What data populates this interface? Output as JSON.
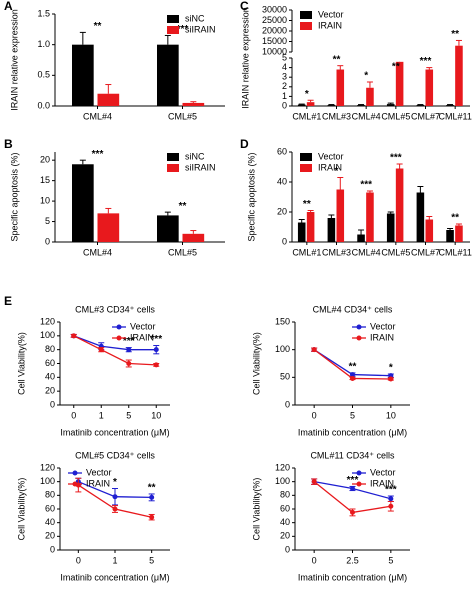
{
  "chart_data": [
    {
      "panel": "A",
      "type": "bar",
      "ylabel": "IRAIN relative expression",
      "categories": [
        "CML#4",
        "CML#5"
      ],
      "series": [
        {
          "name": "siNC",
          "color": "#000000",
          "values": [
            1.0,
            1.0
          ],
          "errors": [
            0.2,
            0.15
          ]
        },
        {
          "name": "siIRAIN",
          "color": "#e8191d",
          "values": [
            0.2,
            0.05
          ],
          "errors": [
            0.15,
            0.02
          ]
        }
      ],
      "significance": [
        "**",
        "***"
      ],
      "ylim": [
        0,
        1.5
      ],
      "yticks": [
        {
          "value": 0,
          "label": "0.0"
        },
        0.5,
        {
          "value": 1,
          "label": "1.0"
        },
        1.5
      ],
      "legend": "upper right"
    },
    {
      "panel": "C",
      "type": "bar",
      "ylabel": "IRAIN relative expression",
      "categories": [
        "CML#1",
        "CML#3",
        "CML#4",
        "CML#5",
        "CML#7",
        "CML#11"
      ],
      "series": [
        {
          "name": "Vector",
          "color": "#000000",
          "values": [
            0.15,
            0.1,
            0.1,
            0.2,
            0.1,
            0.1
          ],
          "errors": [
            0.05,
            0.05,
            0.05,
            0.1,
            0.05,
            0.05
          ]
        },
        {
          "name": "IRAIN",
          "color": "#e8191d",
          "values": [
            0.4,
            3.8,
            1.9,
            4.6,
            3.8,
            13000
          ],
          "errors": [
            0.2,
            0.4,
            0.6,
            0.5,
            0.2,
            2500
          ]
        }
      ],
      "significance": [
        "*",
        "**",
        "*",
        "**",
        "***",
        "**"
      ],
      "ylim": [
        0,
        30000
      ],
      "ybreak": [
        5,
        10000
      ],
      "yticks": [
        0,
        1,
        2,
        3,
        4,
        5,
        10000,
        15000,
        20000,
        25000,
        30000
      ],
      "legend": "upper left"
    },
    {
      "panel": "B",
      "type": "bar",
      "ylabel": "Specific apoptosis (%)",
      "categories": [
        "CML#4",
        "CML#5"
      ],
      "series": [
        {
          "name": "siNC",
          "color": "#000000",
          "values": [
            19,
            6.5
          ],
          "errors": [
            1,
            0.8
          ]
        },
        {
          "name": "siIRAIN",
          "color": "#e8191d",
          "values": [
            7,
            2
          ],
          "errors": [
            1.2,
            0.8
          ]
        }
      ],
      "significance": [
        "***",
        "**"
      ],
      "ylim": [
        0,
        22
      ],
      "yticks": [
        0,
        5,
        10,
        15,
        20
      ],
      "legend": "upper right"
    },
    {
      "panel": "D",
      "type": "bar",
      "ylabel": "Specific apoptosis (%)",
      "categories": [
        "CML#1",
        "CML#3",
        "CML#4",
        "CML#5",
        "CML#7",
        "CML#11"
      ],
      "series": [
        {
          "name": "Vector",
          "color": "#000000",
          "values": [
            13,
            16,
            5,
            19,
            33,
            8
          ],
          "errors": [
            2,
            2,
            3,
            1,
            4,
            1
          ]
        },
        {
          "name": "IRAIN",
          "color": "#e8191d",
          "values": [
            20,
            35,
            33,
            49,
            15,
            11
          ],
          "errors": [
            1,
            8,
            1,
            3,
            2,
            1
          ]
        }
      ],
      "significance": [
        "**",
        "*",
        "***",
        "***",
        null,
        "**"
      ],
      "ylim": [
        0,
        60
      ],
      "yticks": [
        0,
        20,
        40,
        60
      ],
      "legend": "upper left"
    },
    {
      "panel": "E",
      "type": "line",
      "title": "CML#3 CD34⁺ cells",
      "ylabel": "Cell Viability(%)",
      "xlabel": "Imatinib concentration (μM)",
      "categories": [
        "0",
        "1",
        "5",
        "10"
      ],
      "series": [
        {
          "name": "Vector",
          "color": "#1f1fd1",
          "values": [
            100,
            85,
            80,
            80
          ],
          "errors": [
            2,
            5,
            3,
            6
          ]
        },
        {
          "name": "IRAIN",
          "color": "#e8191d",
          "values": [
            100,
            80,
            60,
            58
          ],
          "errors": [
            2,
            3,
            5,
            2
          ]
        }
      ],
      "significance": [
        null,
        null,
        "***",
        "***"
      ],
      "ylim": [
        0,
        120
      ],
      "yticks": [
        0,
        20,
        40,
        60,
        80,
        100,
        120
      ],
      "legend": "upper right"
    },
    {
      "type": "line",
      "title": "CML#4 CD34⁺ cells",
      "ylabel": "Cell Viability(%)",
      "xlabel": "Imatinib concentration (μM)",
      "categories": [
        "0",
        "5",
        "10"
      ],
      "series": [
        {
          "name": "Vector",
          "color": "#1f1fd1",
          "values": [
            100,
            55,
            53
          ],
          "errors": [
            3,
            3,
            3
          ]
        },
        {
          "name": "IRAIN",
          "color": "#e8191d",
          "values": [
            100,
            48,
            47
          ],
          "errors": [
            3,
            2,
            2
          ]
        }
      ],
      "significance": [
        null,
        "**",
        "*"
      ],
      "ylim": [
        0,
        150
      ],
      "yticks": [
        0,
        50,
        100,
        150
      ],
      "legend": "upper right"
    },
    {
      "type": "line",
      "title": "CML#5 CD34⁺ cells",
      "ylabel": "Cell Viability(%)",
      "xlabel": "Imatinib concentration (μM)",
      "categories": [
        "0",
        "1",
        "5"
      ],
      "series": [
        {
          "name": "Vector",
          "color": "#1f1fd1",
          "values": [
            100,
            78,
            77
          ],
          "errors": [
            5,
            12,
            5
          ]
        },
        {
          "name": "IRAIN",
          "color": "#e8191d",
          "values": [
            95,
            60,
            48
          ],
          "errors": [
            10,
            5,
            4
          ]
        }
      ],
      "significance": [
        null,
        "*",
        "**"
      ],
      "ylim": [
        0,
        120
      ],
      "yticks": [
        0,
        20,
        40,
        60,
        80,
        100,
        120
      ],
      "legend": "upper left"
    },
    {
      "type": "line",
      "title": "CML#11 CD34⁺ cells",
      "ylabel": "Cell Viability(%)",
      "xlabel": "Imatinib concentration (μM)",
      "categories": [
        "0",
        "2.5",
        "5"
      ],
      "series": [
        {
          "name": "Vector",
          "color": "#1f1fd1",
          "values": [
            100,
            90,
            75
          ],
          "errors": [
            4,
            3,
            4
          ]
        },
        {
          "name": "IRAIN",
          "color": "#e8191d",
          "values": [
            100,
            55,
            64
          ],
          "errors": [
            4,
            5,
            7
          ]
        }
      ],
      "significance": [
        null,
        "***",
        "***"
      ],
      "ylim": [
        0,
        120
      ],
      "yticks": [
        0,
        20,
        40,
        60,
        80,
        100,
        120
      ],
      "legend": "upper right"
    }
  ]
}
